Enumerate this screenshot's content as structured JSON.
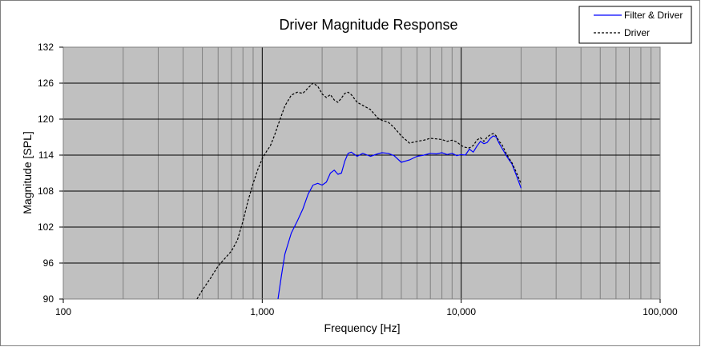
{
  "chart_data": {
    "type": "line",
    "title": "Driver Magnitude Response",
    "xlabel": "Frequency [Hz]",
    "ylabel": "Magnitude [SPL]",
    "x_scale": "log",
    "xlim": [
      100,
      100000
    ],
    "ylim": [
      90,
      132
    ],
    "x_ticks": [
      100,
      1000,
      10000,
      100000
    ],
    "x_tick_labels": [
      "100",
      "1,000",
      "10,000",
      "100,000"
    ],
    "y_ticks": [
      90,
      96,
      102,
      108,
      114,
      120,
      126,
      132
    ],
    "y_tick_labels": [
      "90",
      "96",
      "102",
      "108",
      "114",
      "120",
      "126",
      "132"
    ],
    "grid": true,
    "legend_position": "top-right",
    "plot_background": "#c0c0c0",
    "series": [
      {
        "name": "Filter & Driver",
        "color": "#0000ff",
        "style": "solid",
        "x": [
          1200,
          1250,
          1300,
          1400,
          1500,
          1600,
          1700,
          1800,
          1900,
          2000,
          2100,
          2200,
          2300,
          2400,
          2500,
          2600,
          2700,
          2800,
          3000,
          3200,
          3500,
          3800,
          4000,
          4300,
          4600,
          5000,
          5500,
          6000,
          6500,
          7000,
          7500,
          8000,
          8500,
          9000,
          9500,
          10000,
          10500,
          11000,
          11500,
          12000,
          12500,
          13000,
          13500,
          14000,
          14500,
          15000,
          15500,
          16000,
          17000,
          18000,
          19000,
          20000
        ],
        "y": [
          90,
          94,
          97.5,
          101,
          103,
          105,
          107.5,
          109,
          109.3,
          109,
          109.5,
          111,
          111.5,
          110.8,
          111,
          113,
          114.3,
          114.5,
          113.8,
          114.3,
          113.8,
          114.2,
          114.4,
          114.3,
          113.9,
          112.8,
          113.2,
          113.8,
          114,
          114.3,
          114.2,
          114.4,
          114.1,
          114.3,
          113.9,
          114.1,
          114,
          115,
          114.5,
          115.5,
          116.3,
          115.9,
          116.1,
          116.8,
          117.2,
          117,
          116,
          115.2,
          113.7,
          112.5,
          110.5,
          108.5
        ]
      },
      {
        "name": "Driver",
        "color": "#000000",
        "style": "dashed",
        "x": [
          470,
          500,
          550,
          600,
          650,
          700,
          750,
          800,
          850,
          900,
          950,
          1000,
          1050,
          1100,
          1150,
          1200,
          1300,
          1400,
          1500,
          1600,
          1700,
          1800,
          1900,
          2000,
          2100,
          2200,
          2300,
          2400,
          2500,
          2600,
          2700,
          2800,
          3000,
          3200,
          3500,
          3800,
          4000,
          4300,
          4600,
          5000,
          5500,
          6000,
          6500,
          7000,
          7500,
          8000,
          8500,
          9000,
          9500,
          10000,
          10500,
          11000,
          11500,
          12000,
          12500,
          13000,
          13500,
          14000,
          14500,
          15000,
          15500,
          16000,
          17000,
          18000,
          19000,
          20000
        ],
        "y": [
          90,
          91.5,
          93.5,
          95.5,
          96.8,
          98,
          99.8,
          103,
          106.5,
          109.3,
          111.6,
          113.4,
          114.6,
          115.6,
          117.2,
          119,
          122.2,
          124,
          124.5,
          124.3,
          125.2,
          126,
          125.5,
          124.2,
          123.6,
          124.1,
          123.2,
          122.8,
          123.5,
          124.3,
          124.5,
          124.1,
          122.8,
          122.3,
          121.6,
          120.2,
          119.8,
          119.5,
          118.6,
          117.2,
          116,
          116.3,
          116.5,
          116.8,
          116.7,
          116.6,
          116.3,
          116.5,
          116.2,
          115.6,
          115.3,
          115.2,
          115.6,
          116.5,
          116.9,
          116.3,
          117,
          117.4,
          117.6,
          117.2,
          116.3,
          115.8,
          114,
          112.7,
          111,
          109.2
        ]
      }
    ]
  }
}
